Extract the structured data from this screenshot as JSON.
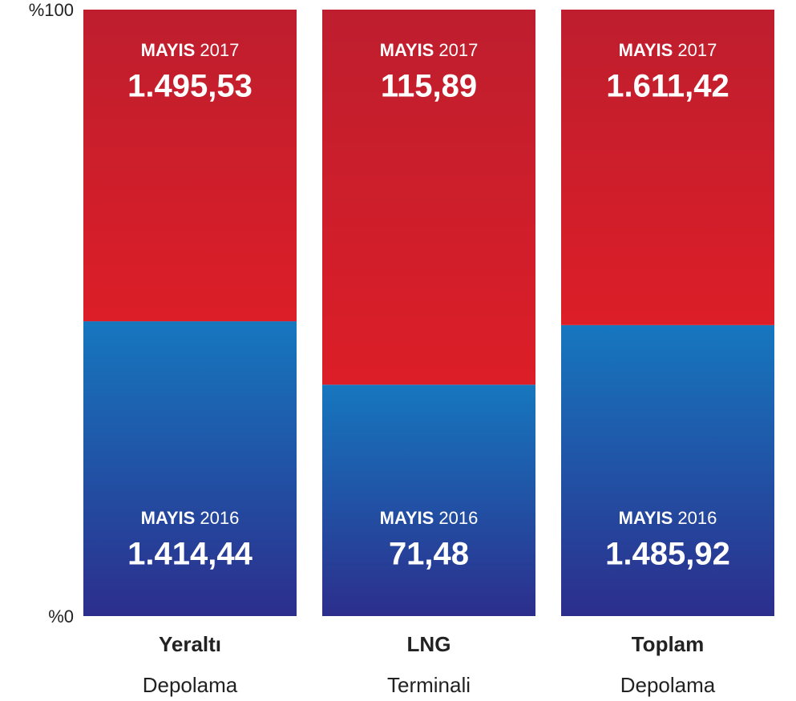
{
  "chart_data": {
    "type": "stacked_percent_bar",
    "categories": [
      "Yeraltı Depolama",
      "LNG Terminali",
      "Toplam Depolama"
    ],
    "series": [
      {
        "name": "MAYIS 2016",
        "color": "#1a5aa8",
        "values": [
          1414.44,
          71.48,
          1485.92
        ],
        "value_labels": [
          "1.414,44",
          "71,48",
          "1.485,92"
        ]
      },
      {
        "name": "MAYIS 2017",
        "color": "#cf1f2c",
        "values": [
          1495.53,
          115.89,
          1611.42
        ],
        "value_labels": [
          "1.495,53",
          "115,89",
          "1.611,42"
        ]
      }
    ],
    "ylim": [
      0,
      100
    ],
    "yticks": [
      {
        "value": 0,
        "label": "%0"
      },
      {
        "value": 100,
        "label": "%100"
      }
    ]
  }
}
